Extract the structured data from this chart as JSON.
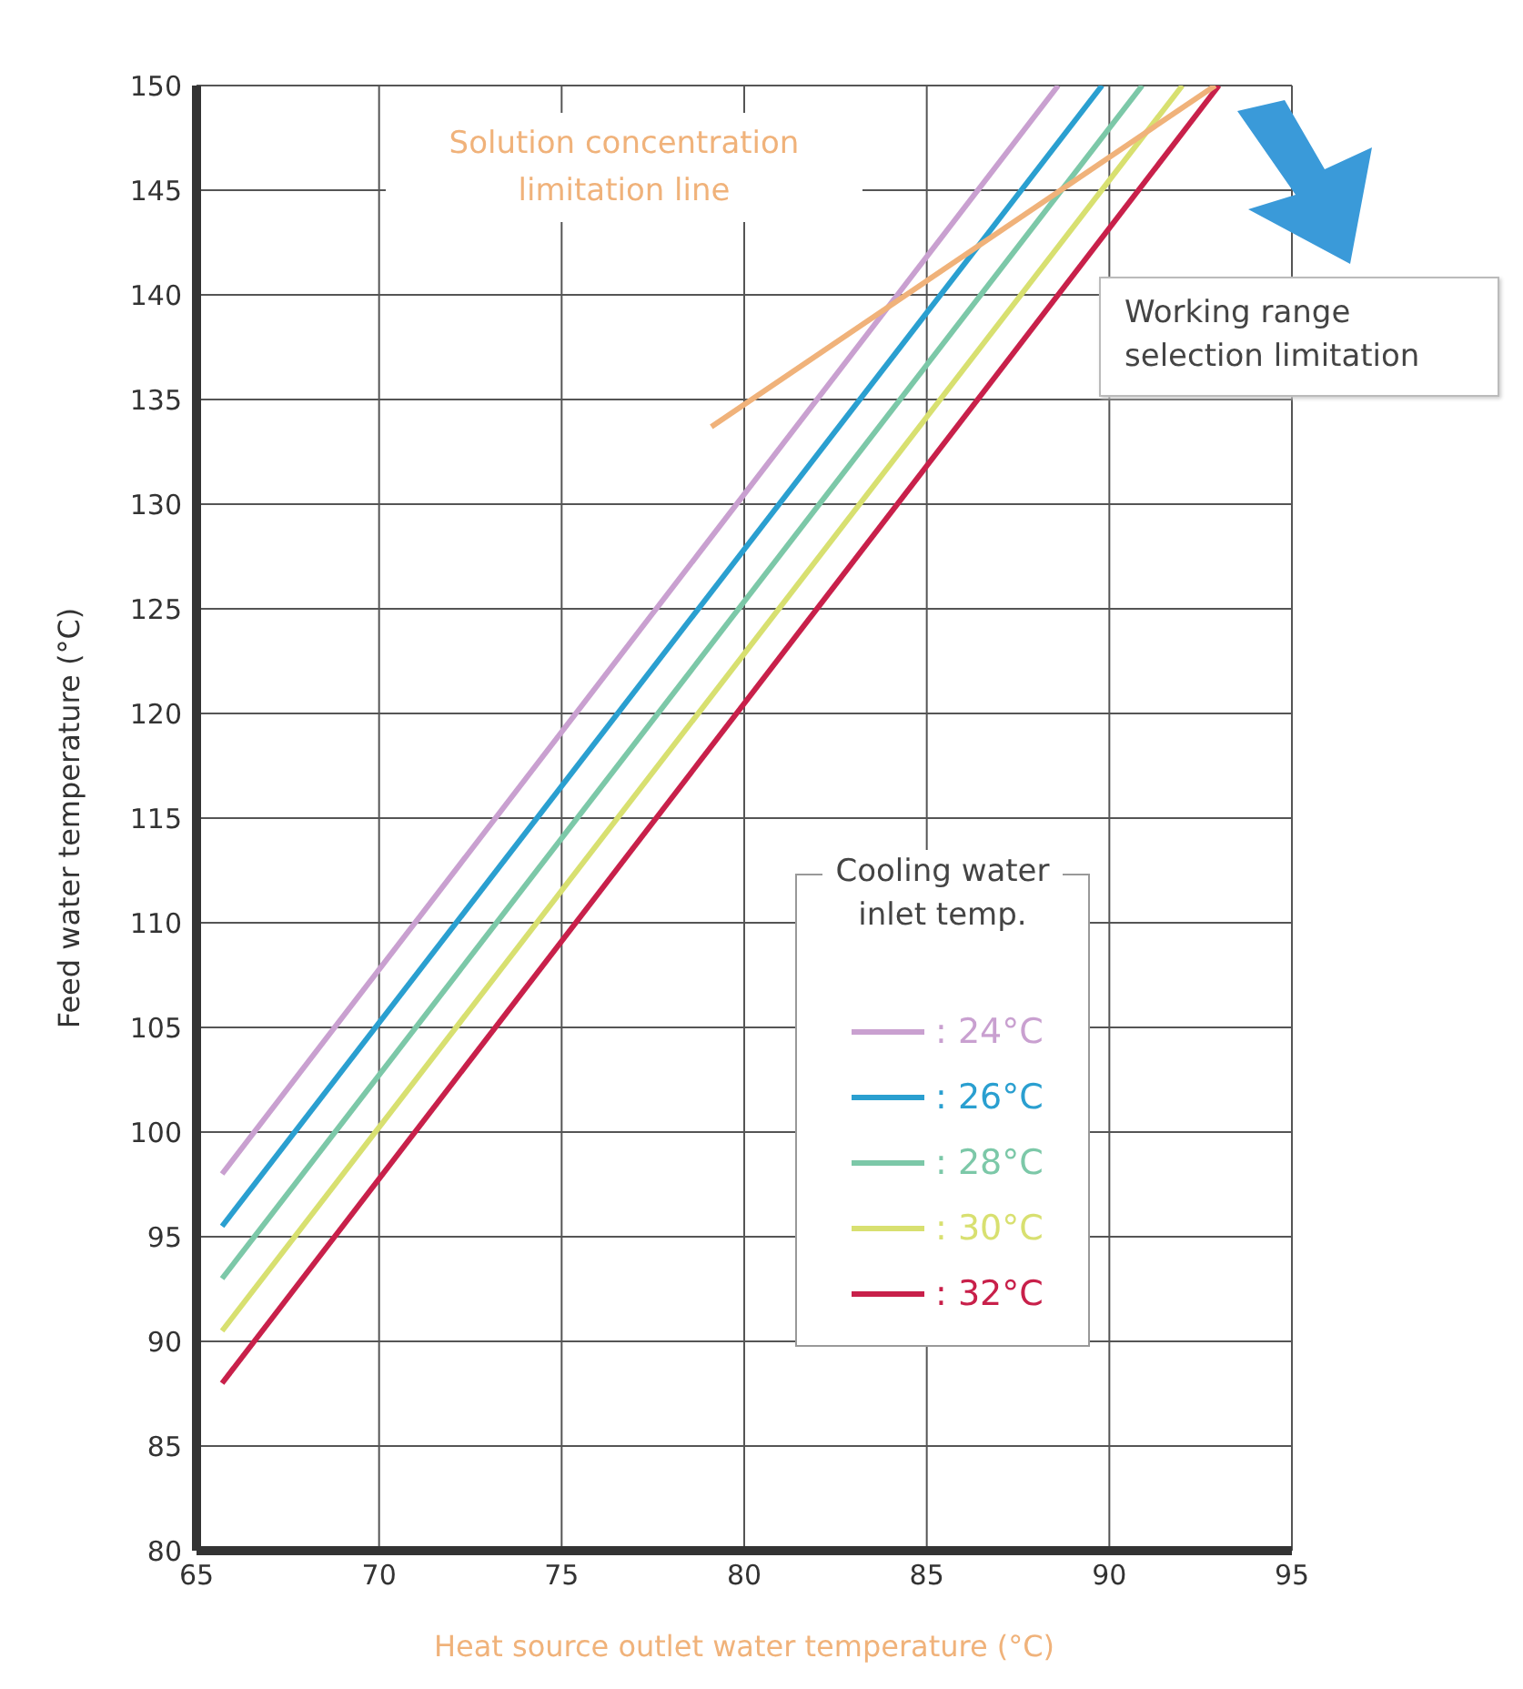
{
  "chart_data": {
    "type": "line",
    "xlabel": "Heat source outlet water temperature (°C)",
    "ylabel": "Feed water temperature (°C)",
    "legend_title": "Cooling water inlet temp.",
    "series": [
      {
        "name": ": 24°C",
        "color": "#c9a0d0",
        "x": [
          65.7,
          88.6
        ],
        "values": [
          98,
          150
        ]
      },
      {
        "name": ": 26°C",
        "color": "#2a9fd0",
        "x": [
          65.7,
          89.8
        ],
        "values": [
          95.5,
          150
        ]
      },
      {
        "name": ": 28°C",
        "color": "#7cc8a8",
        "x": [
          65.7,
          90.9
        ],
        "values": [
          93,
          150
        ]
      },
      {
        "name": ": 30°C",
        "color": "#d8e070",
        "x": [
          65.7,
          92
        ],
        "values": [
          90.5,
          150
        ]
      },
      {
        "name": ": 32°C",
        "color": "#c8204a",
        "x": [
          65.7,
          93
        ],
        "values": [
          88,
          150
        ]
      },
      {
        "color": "#f0b27a",
        "x": [
          79.1,
          92.9
        ],
        "values": [
          133.7,
          150
        ]
      }
    ],
    "annotations": [
      "Solution concentration limitation line",
      "Working range selection limitation"
    ],
    "xlim": [
      65,
      95
    ],
    "xticks": [
      65,
      70,
      75,
      80,
      85,
      90,
      95
    ],
    "ylim": [
      80,
      150
    ],
    "yticks": [
      80,
      85,
      90,
      95,
      100,
      105,
      110,
      115,
      120,
      125,
      130,
      135,
      140,
      145,
      150
    ],
    "grid": true,
    "legend": "right",
    "line_style": "solid",
    "marker": "none"
  }
}
